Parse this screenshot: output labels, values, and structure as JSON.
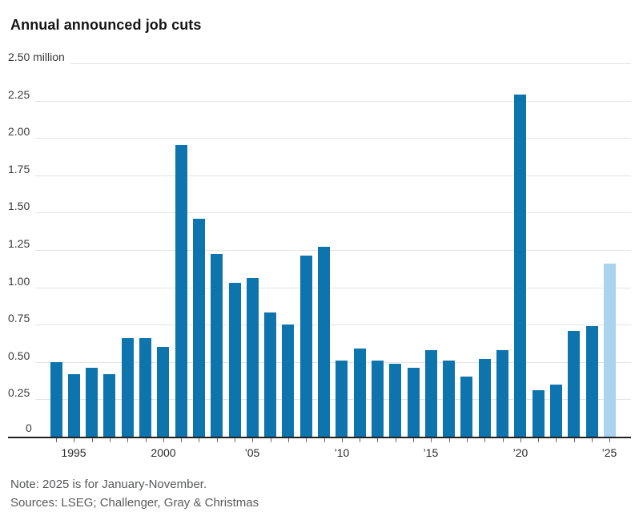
{
  "title": "Annual announced job cuts",
  "note": "Note: 2025 is for January-November.",
  "sources": "Sources: LSEG; Challenger, Gray & Christmas",
  "chart_data": {
    "type": "bar",
    "title": "Annual announced job cuts",
    "unit": "million job cuts",
    "categories": [
      1994,
      1995,
      1996,
      1997,
      1998,
      1999,
      2000,
      2001,
      2002,
      2003,
      2004,
      2005,
      2006,
      2007,
      2008,
      2009,
      2010,
      2011,
      2012,
      2013,
      2014,
      2015,
      2016,
      2017,
      2018,
      2019,
      2020,
      2021,
      2022,
      2023,
      2024,
      2025
    ],
    "values": [
      0.51,
      0.43,
      0.47,
      0.43,
      0.67,
      0.67,
      0.61,
      1.96,
      1.47,
      1.23,
      1.04,
      1.07,
      0.84,
      0.76,
      1.22,
      1.28,
      0.52,
      0.6,
      0.52,
      0.5,
      0.47,
      0.59,
      0.52,
      0.41,
      0.53,
      0.59,
      2.3,
      0.32,
      0.36,
      0.72,
      0.75,
      1.17
    ],
    "highlight_year": 2025,
    "colors": {
      "bar": "#0e74ad",
      "highlight": "#a9d3ee"
    },
    "y_axis": {
      "range": [
        0,
        2.5
      ],
      "ticks": [
        "0",
        "0.25",
        "0.50",
        "0.75",
        "1.00",
        "1.25",
        "1.50",
        "1.75",
        "2.00",
        "2.25",
        "2.50 million"
      ]
    },
    "x_axis": {
      "tick_labels": [
        {
          "year": 1995,
          "label": "1995"
        },
        {
          "year": 2000,
          "label": "2000"
        },
        {
          "year": 2005,
          "label": "’05"
        },
        {
          "year": 2010,
          "label": "’10"
        },
        {
          "year": 2015,
          "label": "’15"
        },
        {
          "year": 2020,
          "label": "’20"
        },
        {
          "year": 2025,
          "label": "’25"
        }
      ]
    },
    "grid": true,
    "legend": "none"
  }
}
